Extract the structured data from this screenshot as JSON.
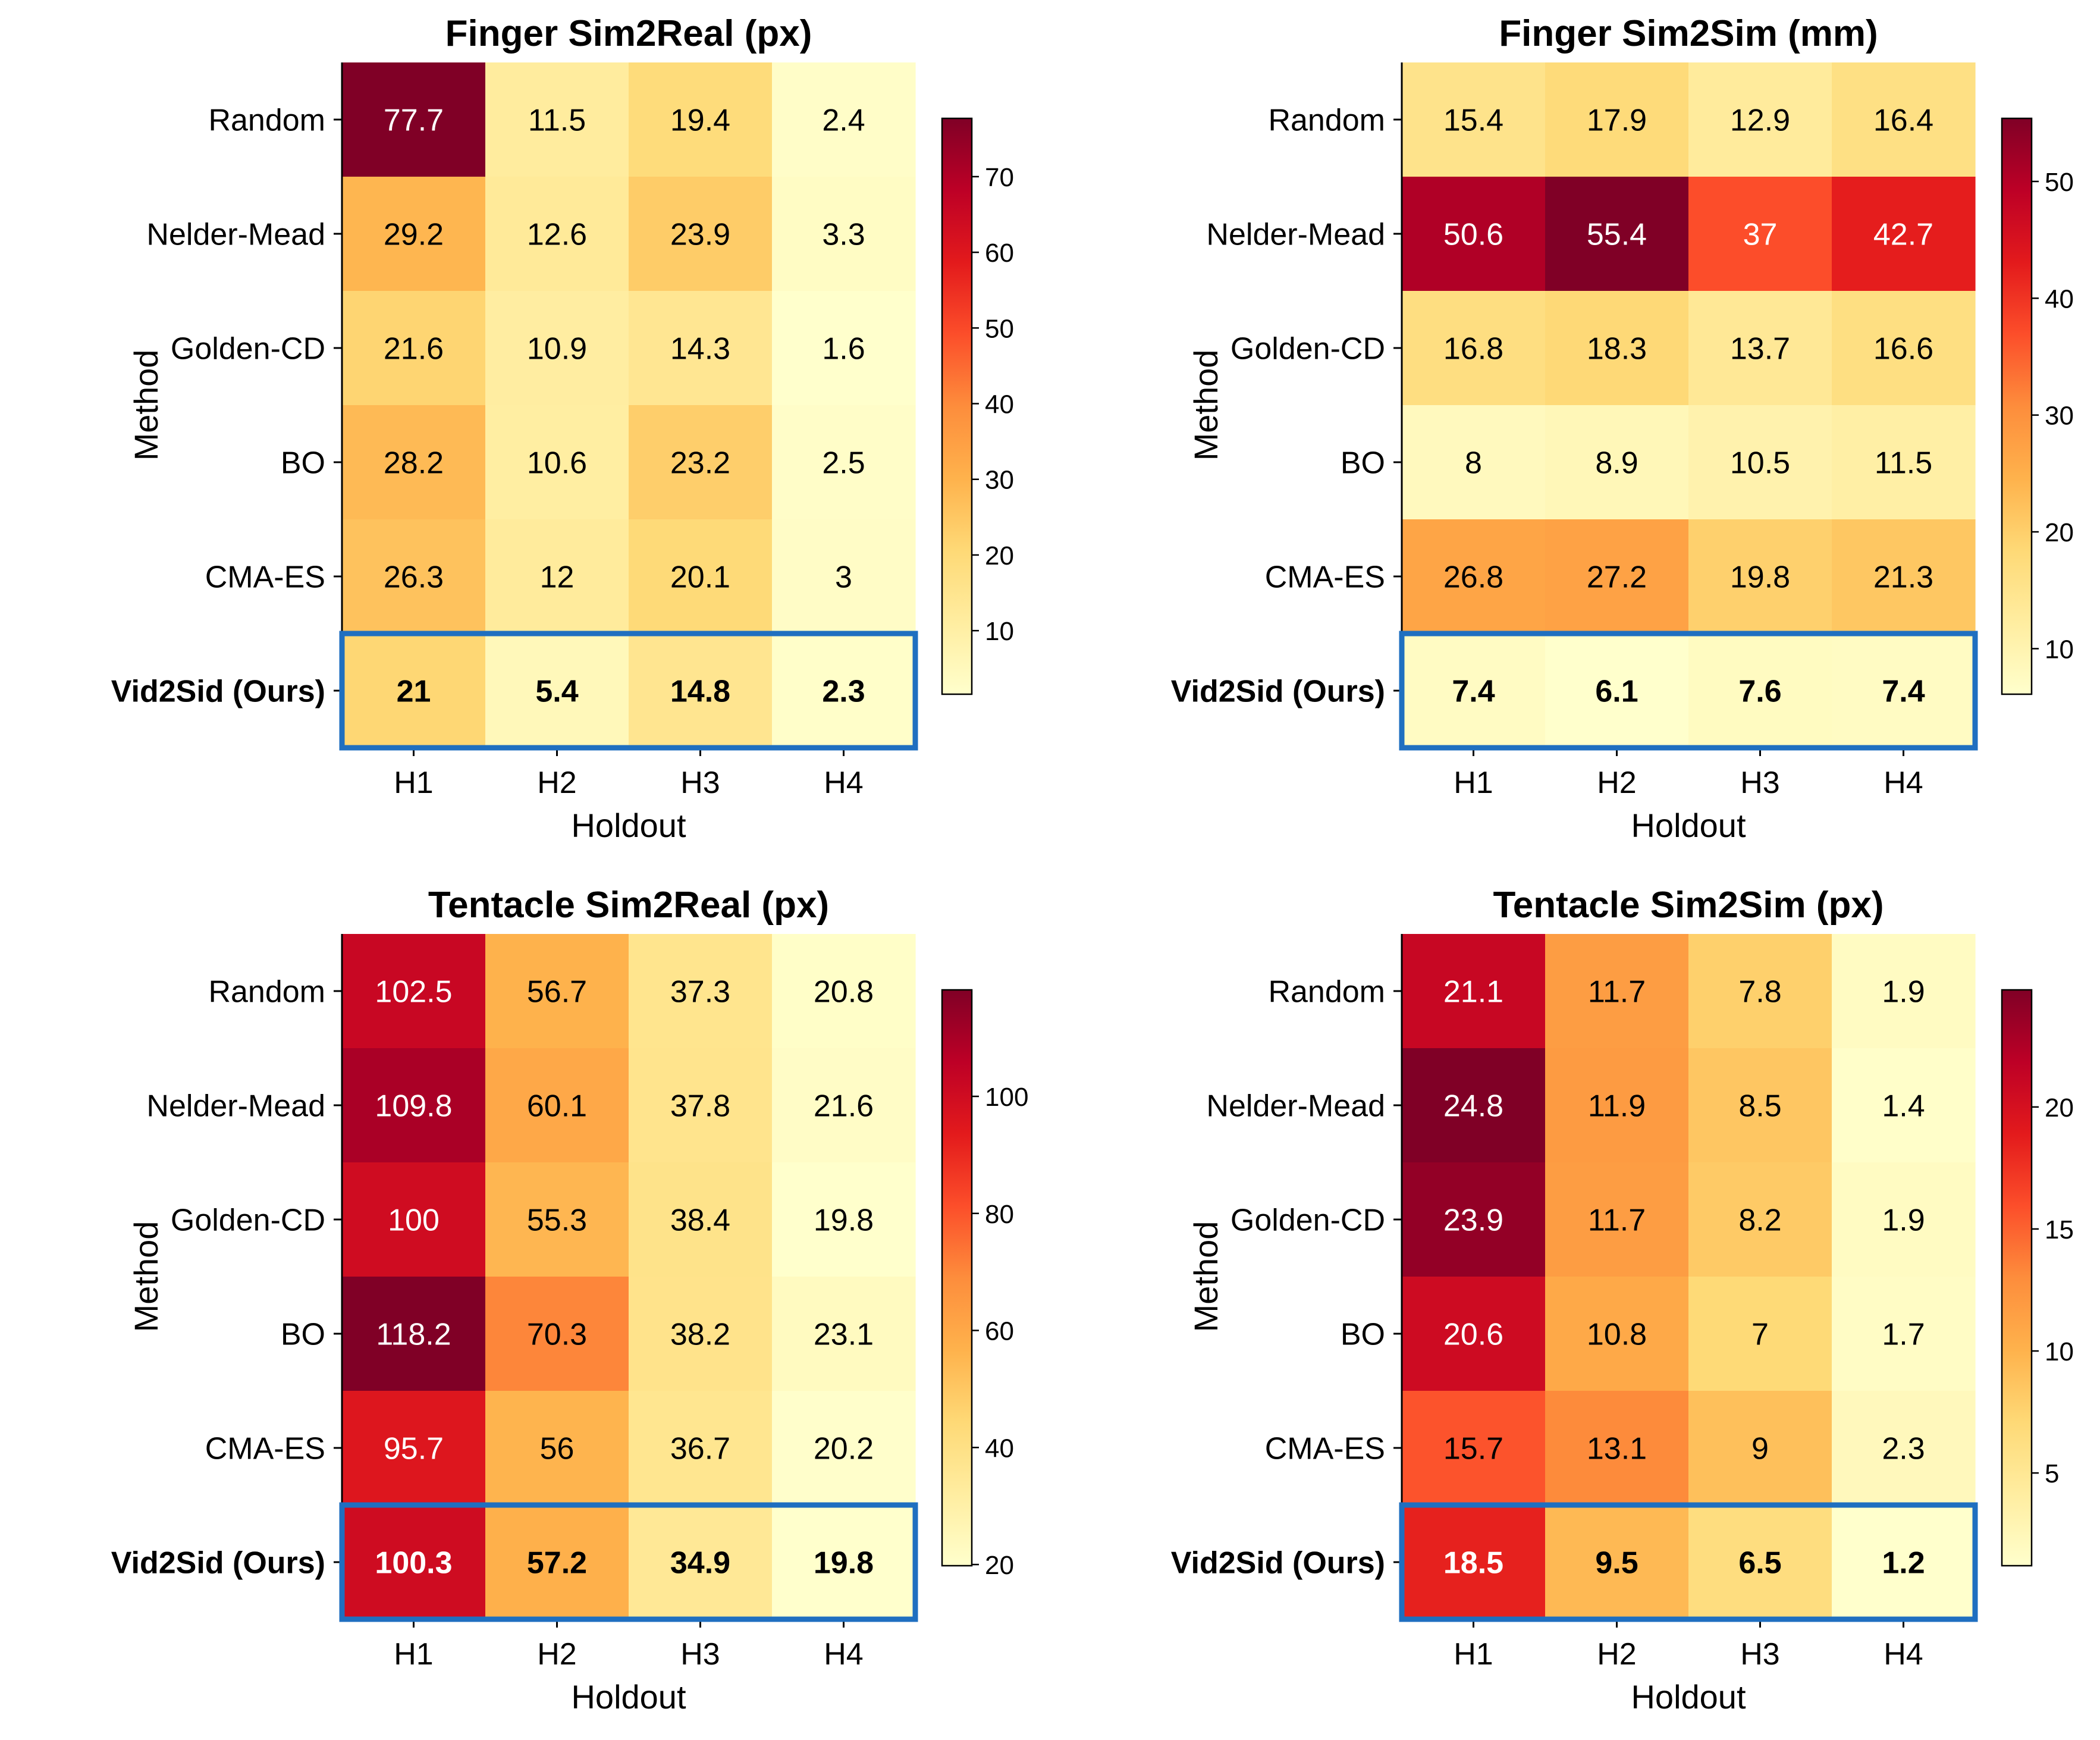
{
  "colormap": [
    "#ffffcc",
    "#ffeda0",
    "#fed976",
    "#feb24c",
    "#fd8d3c",
    "#fc4e2a",
    "#e31a1c",
    "#bd0026",
    "#800026"
  ],
  "highlight_color": "#1f6fc0",
  "chart_data": [
    {
      "type": "heatmap",
      "title": "Finger Sim2Real (px)",
      "xlabel": "Holdout",
      "ylabel": "Method",
      "x_categories": [
        "H1",
        "H2",
        "H3",
        "H4"
      ],
      "y_categories": [
        "Random",
        "Nelder-Mead",
        "Golden-CD",
        "BO",
        "CMA-ES",
        "Vid2Sid (Ours)"
      ],
      "values": [
        [
          77.7,
          11.5,
          19.4,
          2.4
        ],
        [
          29.2,
          12.6,
          23.9,
          3.3
        ],
        [
          21.6,
          10.9,
          14.3,
          1.6
        ],
        [
          28.2,
          10.6,
          23.2,
          2.5
        ],
        [
          26.3,
          12.0,
          20.1,
          3.0
        ],
        [
          21.0,
          5.4,
          14.8,
          2.3
        ]
      ],
      "highlight_row": "Vid2Sid (Ours)",
      "colorbar_range": [
        1.6,
        77.7
      ],
      "colorbar_ticks": [
        10,
        20,
        30,
        40,
        50,
        60,
        70
      ]
    },
    {
      "type": "heatmap",
      "title": "Finger Sim2Sim (mm)",
      "xlabel": "Holdout",
      "ylabel": "Method",
      "x_categories": [
        "H1",
        "H2",
        "H3",
        "H4"
      ],
      "y_categories": [
        "Random",
        "Nelder-Mead",
        "Golden-CD",
        "BO",
        "CMA-ES",
        "Vid2Sid (Ours)"
      ],
      "values": [
        [
          15.4,
          17.9,
          12.9,
          16.4
        ],
        [
          50.6,
          55.4,
          37.0,
          42.7
        ],
        [
          16.8,
          18.3,
          13.7,
          16.6
        ],
        [
          8.0,
          8.9,
          10.5,
          11.5
        ],
        [
          26.8,
          27.2,
          19.8,
          21.3
        ],
        [
          7.4,
          6.1,
          7.6,
          7.4
        ]
      ],
      "highlight_row": "Vid2Sid (Ours)",
      "colorbar_range": [
        6.1,
        55.4
      ],
      "colorbar_ticks": [
        10,
        20,
        30,
        40,
        50
      ]
    },
    {
      "type": "heatmap",
      "title": "Tentacle Sim2Real (px)",
      "xlabel": "Holdout",
      "ylabel": "Method",
      "x_categories": [
        "H1",
        "H2",
        "H3",
        "H4"
      ],
      "y_categories": [
        "Random",
        "Nelder-Mead",
        "Golden-CD",
        "BO",
        "CMA-ES",
        "Vid2Sid (Ours)"
      ],
      "values": [
        [
          102.5,
          56.7,
          37.3,
          20.8
        ],
        [
          109.8,
          60.1,
          37.8,
          21.6
        ],
        [
          100.0,
          55.3,
          38.4,
          19.8
        ],
        [
          118.2,
          70.3,
          38.2,
          23.1
        ],
        [
          95.7,
          56.0,
          36.7,
          20.2
        ],
        [
          100.3,
          57.2,
          34.9,
          19.8
        ]
      ],
      "highlight_row": "Vid2Sid (Ours)",
      "colorbar_range": [
        19.8,
        118.2
      ],
      "colorbar_ticks": [
        20,
        40,
        60,
        80,
        100
      ]
    },
    {
      "type": "heatmap",
      "title": "Tentacle Sim2Sim (px)",
      "xlabel": "Holdout",
      "ylabel": "Method",
      "x_categories": [
        "H1",
        "H2",
        "H3",
        "H4"
      ],
      "y_categories": [
        "Random",
        "Nelder-Mead",
        "Golden-CD",
        "BO",
        "CMA-ES",
        "Vid2Sid (Ours)"
      ],
      "values": [
        [
          21.1,
          11.7,
          7.8,
          1.9
        ],
        [
          24.8,
          11.9,
          8.5,
          1.4
        ],
        [
          23.9,
          11.7,
          8.2,
          1.9
        ],
        [
          20.6,
          10.8,
          7.0,
          1.7
        ],
        [
          15.7,
          13.1,
          9.0,
          2.3
        ],
        [
          18.5,
          9.5,
          6.5,
          1.2
        ]
      ],
      "highlight_row": "Vid2Sid (Ours)",
      "colorbar_range": [
        1.2,
        24.8
      ],
      "colorbar_ticks": [
        5,
        10,
        15,
        20
      ]
    }
  ]
}
